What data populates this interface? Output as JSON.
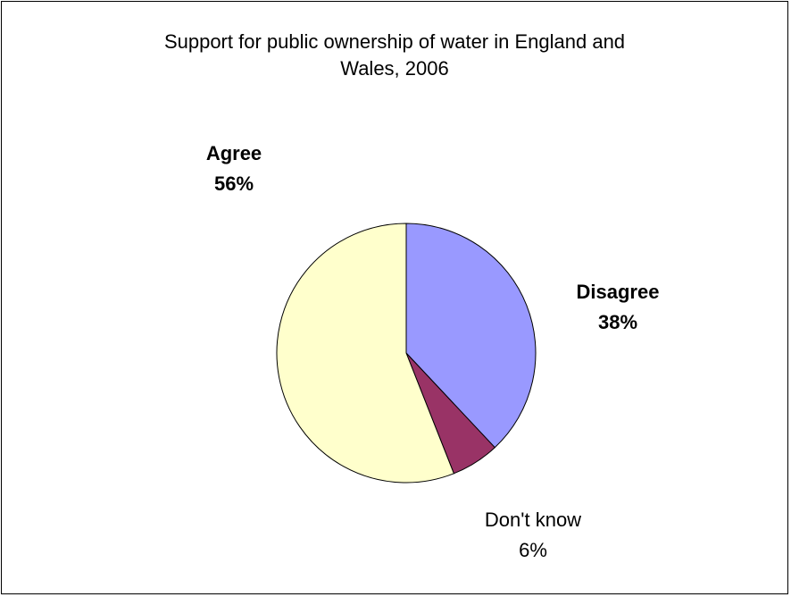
{
  "chart_data": {
    "type": "pie",
    "title_lines": [
      "Support for public ownership of water in England and",
      "Wales, 2006"
    ],
    "slices": [
      {
        "name": "Disagree",
        "value": 38,
        "label_value": "38%",
        "color": "#9999ff",
        "label_bold": true
      },
      {
        "name": "Don't know",
        "value": 6,
        "label_value": "6%",
        "color": "#993366",
        "label_bold": false
      },
      {
        "name": "Agree",
        "value": 56,
        "label_value": "56%",
        "color": "#ffffcc",
        "label_bold": true
      }
    ],
    "start_angle_deg": 0,
    "direction": "clockwise",
    "legend": "none"
  }
}
